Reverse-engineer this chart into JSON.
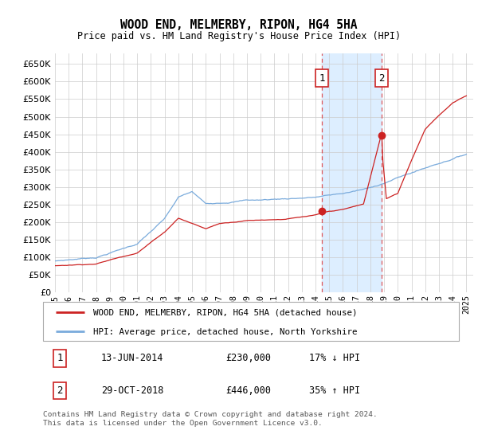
{
  "title": "WOOD END, MELMERBY, RIPON, HG4 5HA",
  "subtitle": "Price paid vs. HM Land Registry's House Price Index (HPI)",
  "legend_line1": "WOOD END, MELMERBY, RIPON, HG4 5HA (detached house)",
  "legend_line2": "HPI: Average price, detached house, North Yorkshire",
  "transaction1": {
    "date": "13-JUN-2014",
    "price": 230000,
    "label": "1",
    "pct": "17%",
    "dir": "↓"
  },
  "transaction2": {
    "date": "29-OCT-2018",
    "price": 446000,
    "label": "2",
    "pct": "35%",
    "dir": "↑"
  },
  "footnote": "Contains HM Land Registry data © Crown copyright and database right 2024.\nThis data is licensed under the Open Government Licence v3.0.",
  "hpi_color": "#7aabdc",
  "property_color": "#cc2222",
  "highlight_color": "#ddeeff",
  "ylim": [
    0,
    680000
  ],
  "yticks": [
    0,
    50000,
    100000,
    150000,
    200000,
    250000,
    300000,
    350000,
    400000,
    450000,
    500000,
    550000,
    600000,
    650000
  ],
  "year_start": 1995,
  "year_end": 2025,
  "t1_year": 2014.46,
  "t2_year": 2018.83,
  "t1_price": 230000,
  "t2_price": 446000
}
